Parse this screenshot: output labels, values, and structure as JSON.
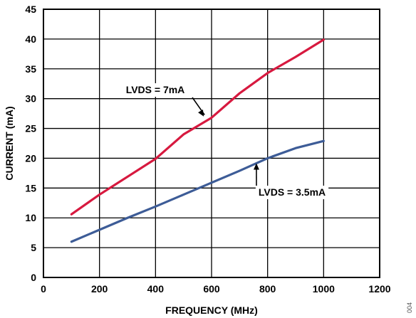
{
  "chart_data": {
    "type": "line",
    "xlabel": "FREQUENCY (MHz)",
    "ylabel": "CURRENT (mA)",
    "xlim": [
      0,
      1200
    ],
    "ylim": [
      0,
      45
    ],
    "xticks": [
      "0",
      "200",
      "400",
      "600",
      "800",
      "1000",
      "1200"
    ],
    "yticks": [
      "0",
      "5",
      "10",
      "15",
      "20",
      "25",
      "30",
      "35",
      "40",
      "45"
    ],
    "grid": true,
    "legend": "none",
    "series": [
      {
        "name": "LVDS = 7mA",
        "color": "#d7193f",
        "x": [
          100,
          200,
          300,
          400,
          500,
          600,
          700,
          800,
          900,
          1000
        ],
        "y": [
          10.6,
          13.9,
          16.9,
          19.9,
          24.0,
          26.8,
          30.9,
          34.3,
          37.0,
          39.9
        ]
      },
      {
        "name": "LVDS = 3.5mA",
        "color": "#3d5c97",
        "x": [
          100,
          200,
          300,
          400,
          500,
          600,
          700,
          800,
          900,
          1000
        ],
        "y": [
          6.0,
          8.0,
          10.0,
          11.9,
          13.9,
          15.9,
          17.9,
          20.0,
          21.7,
          22.9
        ]
      }
    ],
    "annotations": [
      {
        "text": "LVDS = 7mA",
        "series": 0
      },
      {
        "text": "LVDS = 3.5mA",
        "series": 1
      }
    ]
  },
  "figure_id": "004"
}
